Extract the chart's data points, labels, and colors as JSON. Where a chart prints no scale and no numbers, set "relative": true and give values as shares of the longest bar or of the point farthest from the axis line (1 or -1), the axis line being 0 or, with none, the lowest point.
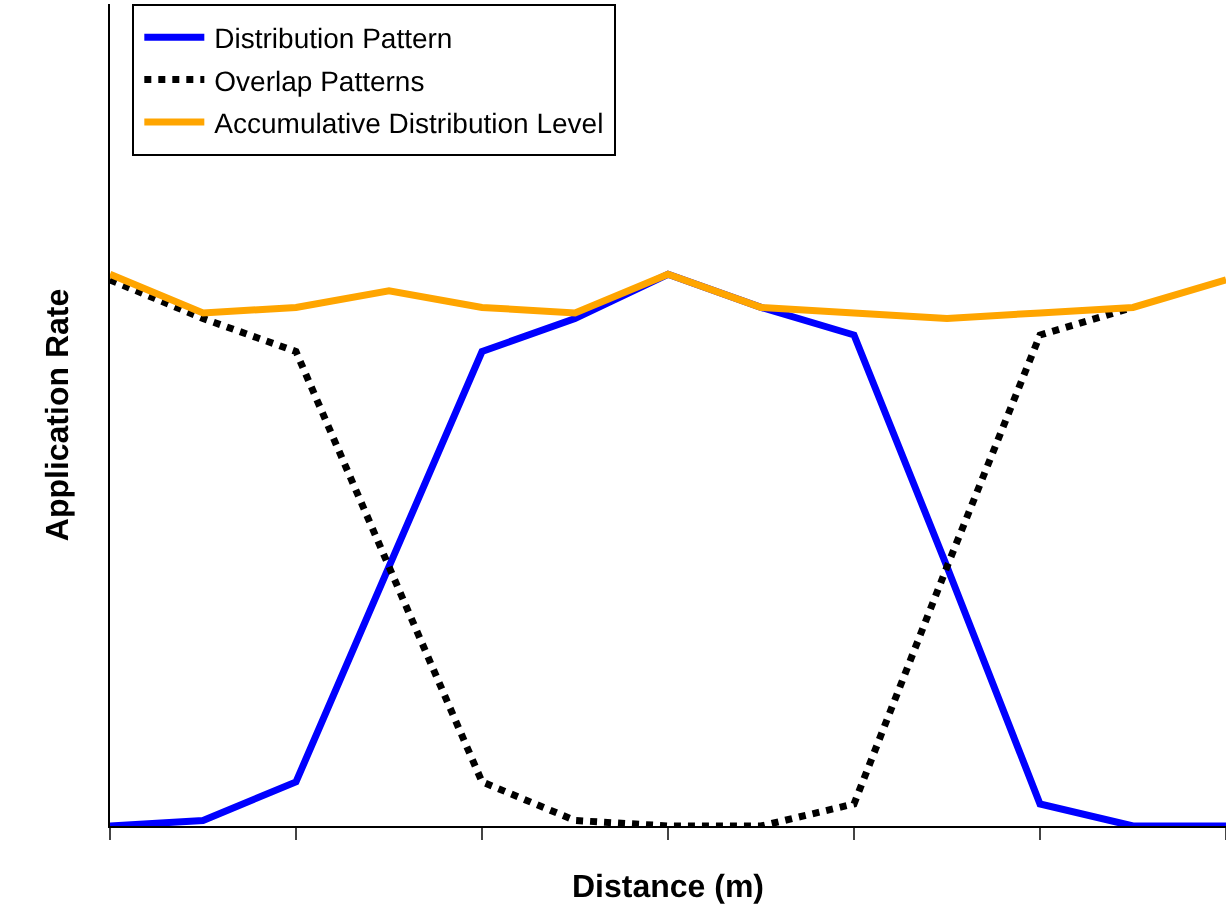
{
  "chart_data": {
    "type": "line",
    "relative": true,
    "xlabel": "Distance (m)",
    "ylabel": "Application Rate",
    "categories": [
      null,
      null,
      null,
      null,
      null,
      null,
      null,
      null,
      null,
      null,
      null,
      null,
      null
    ],
    "legend": "top left",
    "marker": "none",
    "series": [
      {
        "name": "Distribution Pattern",
        "color": "#0000ff",
        "line_style": "solid",
        "values": [
          0,
          0.01,
          0.08,
          0.47,
          0.86,
          0.92,
          1.0,
          0.94,
          0.89,
          0.47,
          0.04,
          0,
          0
        ]
      },
      {
        "name": "Overlap Patterns",
        "color": "#000000",
        "line_style": "dotted",
        "values": [
          0.99,
          0.92,
          0.86,
          0.47,
          0.08,
          0.01,
          0,
          0,
          0.04,
          0.47,
          0.89,
          0.94,
          null
        ]
      },
      {
        "name": "Accumulative Distribution Level",
        "color": "#ffa500",
        "line_style": "solid",
        "values": [
          1.0,
          0.93,
          0.94,
          0.97,
          0.94,
          0.93,
          1.0,
          0.94,
          0.93,
          0.92,
          0.93,
          0.94,
          0.99
        ]
      }
    ]
  }
}
